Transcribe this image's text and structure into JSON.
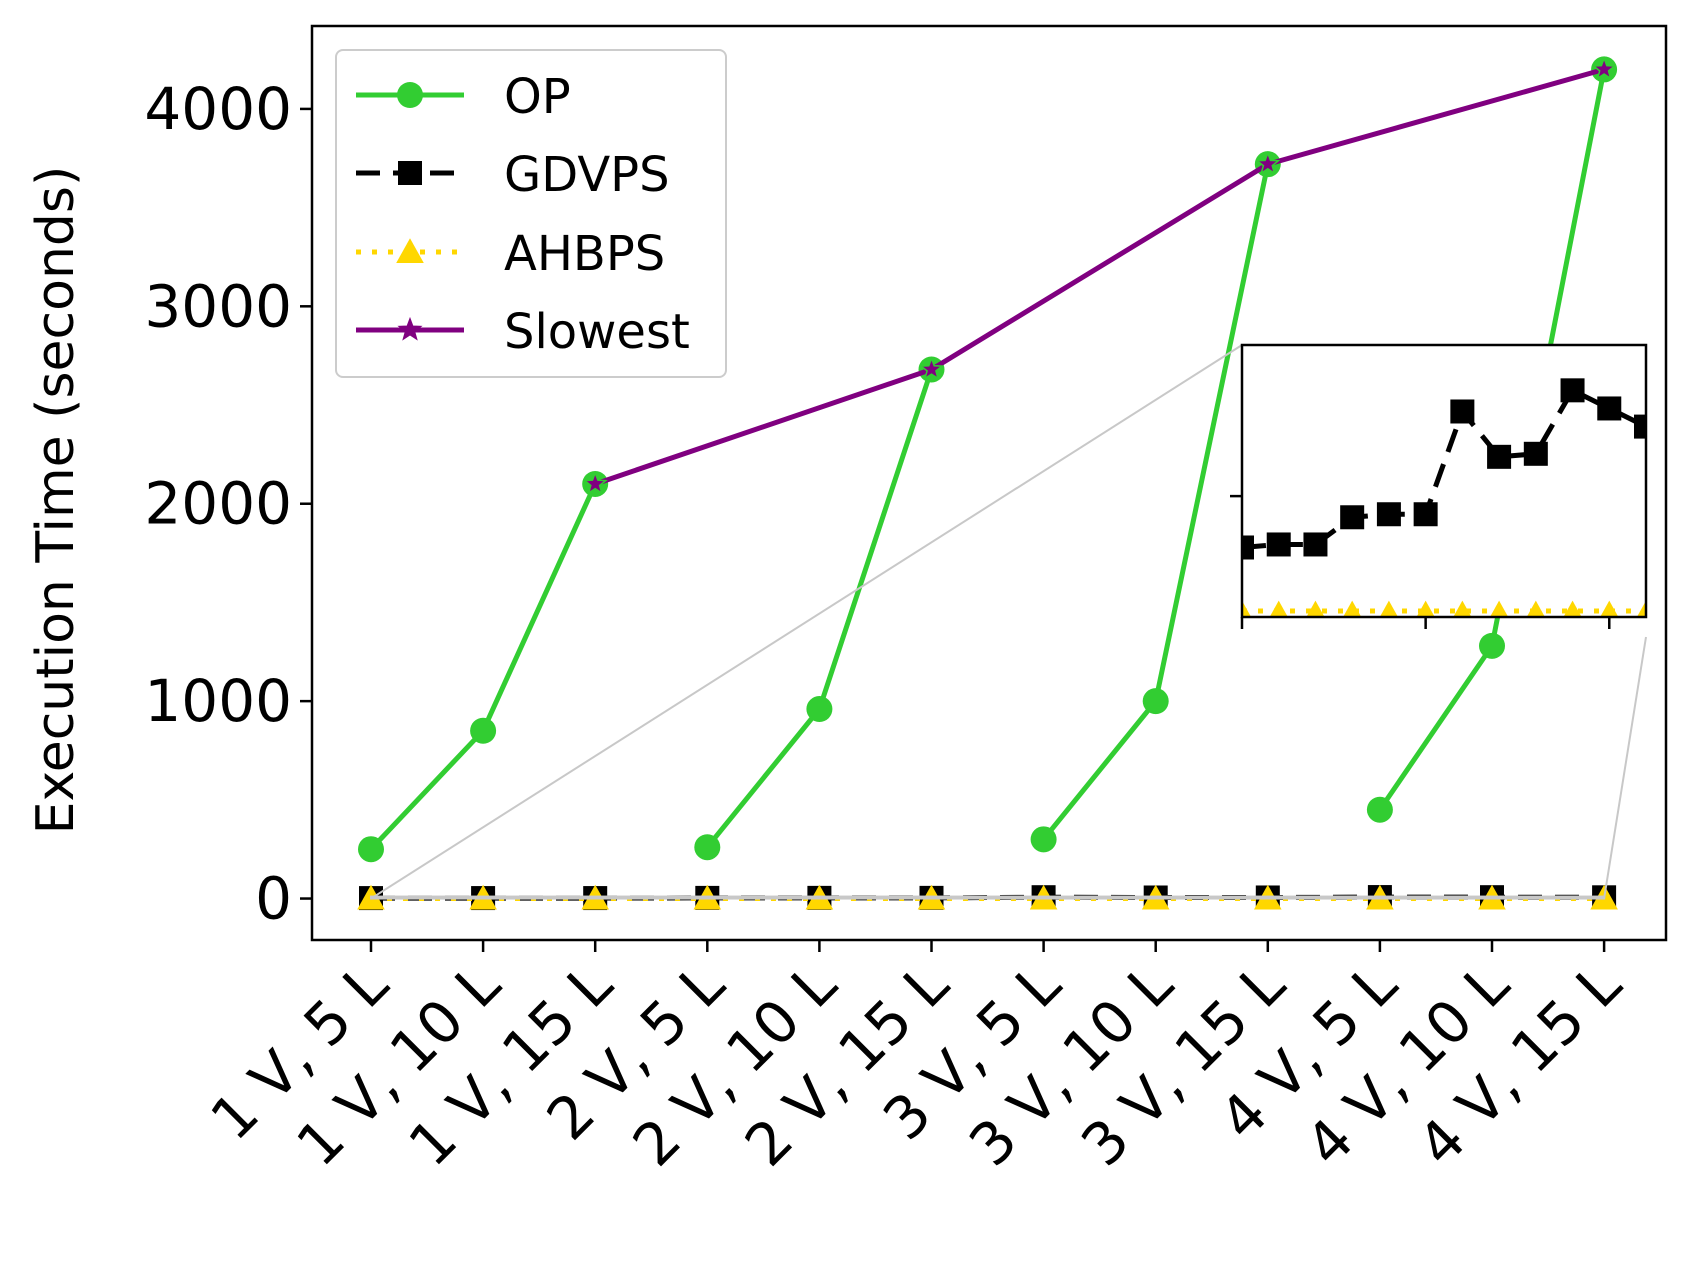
{
  "chart_data": {
    "type": "line",
    "title": "",
    "xlabel": "",
    "ylabel": "Execution Time (seconds)",
    "categories": [
      "1 V, 5 L",
      "1 V, 10 L",
      "1 V, 15 L",
      "2 V, 5 L",
      "2 V, 10 L",
      "2 V, 15 L",
      "3 V, 5 L",
      "3 V, 10 L",
      "3 V, 15 L",
      "4 V, 5 L",
      "4 V, 10 L",
      "4 V, 15 L"
    ],
    "ylim": [
      -210,
      4420
    ],
    "yticks": [
      0,
      1000,
      2000,
      3000,
      4000
    ],
    "ytick_labels": [
      "0",
      "1000",
      "2000",
      "3000",
      "4000"
    ],
    "grid": false,
    "legend_position": "upper-left",
    "series": [
      {
        "name": "OP",
        "color": "#32cd32",
        "marker": "circle",
        "dash": "solid",
        "segments": [
          [
            0,
            2
          ],
          [
            3,
            5
          ],
          [
            6,
            8
          ],
          [
            9,
            11
          ]
        ],
        "values": [
          250,
          850,
          2100,
          260,
          960,
          2680,
          300,
          1000,
          3720,
          450,
          1280,
          4200
        ]
      },
      {
        "name": "GDVPS",
        "color": "#000000",
        "marker": "square",
        "dash": "dashed",
        "values": [
          2.3,
          2.4,
          2.4,
          3.3,
          3.4,
          3.4,
          6.8,
          5.3,
          5.4,
          7.5,
          6.9,
          6.3
        ]
      },
      {
        "name": "AHBPS",
        "color": "#ffd700",
        "marker": "triangle",
        "dash": "dotted",
        "values": [
          0.2,
          0.2,
          0.2,
          0.2,
          0.2,
          0.2,
          0.2,
          0.2,
          0.2,
          0.2,
          0.2,
          0.2
        ]
      },
      {
        "name": "Slowest",
        "color": "#800080",
        "marker": "star",
        "dash": "solid",
        "from_index": 2,
        "values": [
          null,
          null,
          2100,
          null,
          null,
          2680,
          null,
          null,
          3720,
          null,
          null,
          4200
        ]
      }
    ],
    "inset": {
      "xlim": [
        0,
        11
      ],
      "ylim": [
        0,
        9
      ],
      "ytick_values": [
        4
      ],
      "xtick_values": [
        0,
        5,
        10
      ],
      "series": [
        "GDVPS",
        "AHBPS"
      ]
    }
  }
}
